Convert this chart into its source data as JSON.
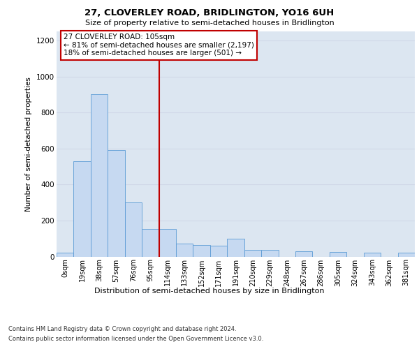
{
  "title1": "27, CLOVERLEY ROAD, BRIDLINGTON, YO16 6UH",
  "title2": "Size of property relative to semi-detached houses in Bridlington",
  "xlabel": "Distribution of semi-detached houses by size in Bridlington",
  "ylabel": "Number of semi-detached properties",
  "categories": [
    "0sqm",
    "19sqm",
    "38sqm",
    "57sqm",
    "76sqm",
    "95sqm",
    "114sqm",
    "133sqm",
    "152sqm",
    "171sqm",
    "191sqm",
    "210sqm",
    "229sqm",
    "248sqm",
    "267sqm",
    "286sqm",
    "305sqm",
    "324sqm",
    "343sqm",
    "362sqm",
    "381sqm"
  ],
  "values": [
    20,
    530,
    900,
    590,
    300,
    155,
    155,
    70,
    65,
    60,
    100,
    35,
    35,
    0,
    30,
    0,
    25,
    0,
    20,
    0,
    20
  ],
  "bar_color": "#c6d9f1",
  "bar_edge_color": "#5b9bd5",
  "grid_color": "#d0d8e8",
  "background_color": "#dce6f1",
  "vline_x": 5.5,
  "vline_color": "#c00000",
  "annotation_text": "27 CLOVERLEY ROAD: 105sqm\n← 81% of semi-detached houses are smaller (2,197)\n18% of semi-detached houses are larger (501) →",
  "annotation_box_color": "#ffffff",
  "annotation_box_edge": "#c00000",
  "ylim": [
    0,
    1250
  ],
  "yticks": [
    0,
    200,
    400,
    600,
    800,
    1000,
    1200
  ],
  "footer1": "Contains HM Land Registry data © Crown copyright and database right 2024.",
  "footer2": "Contains public sector information licensed under the Open Government Licence v3.0."
}
